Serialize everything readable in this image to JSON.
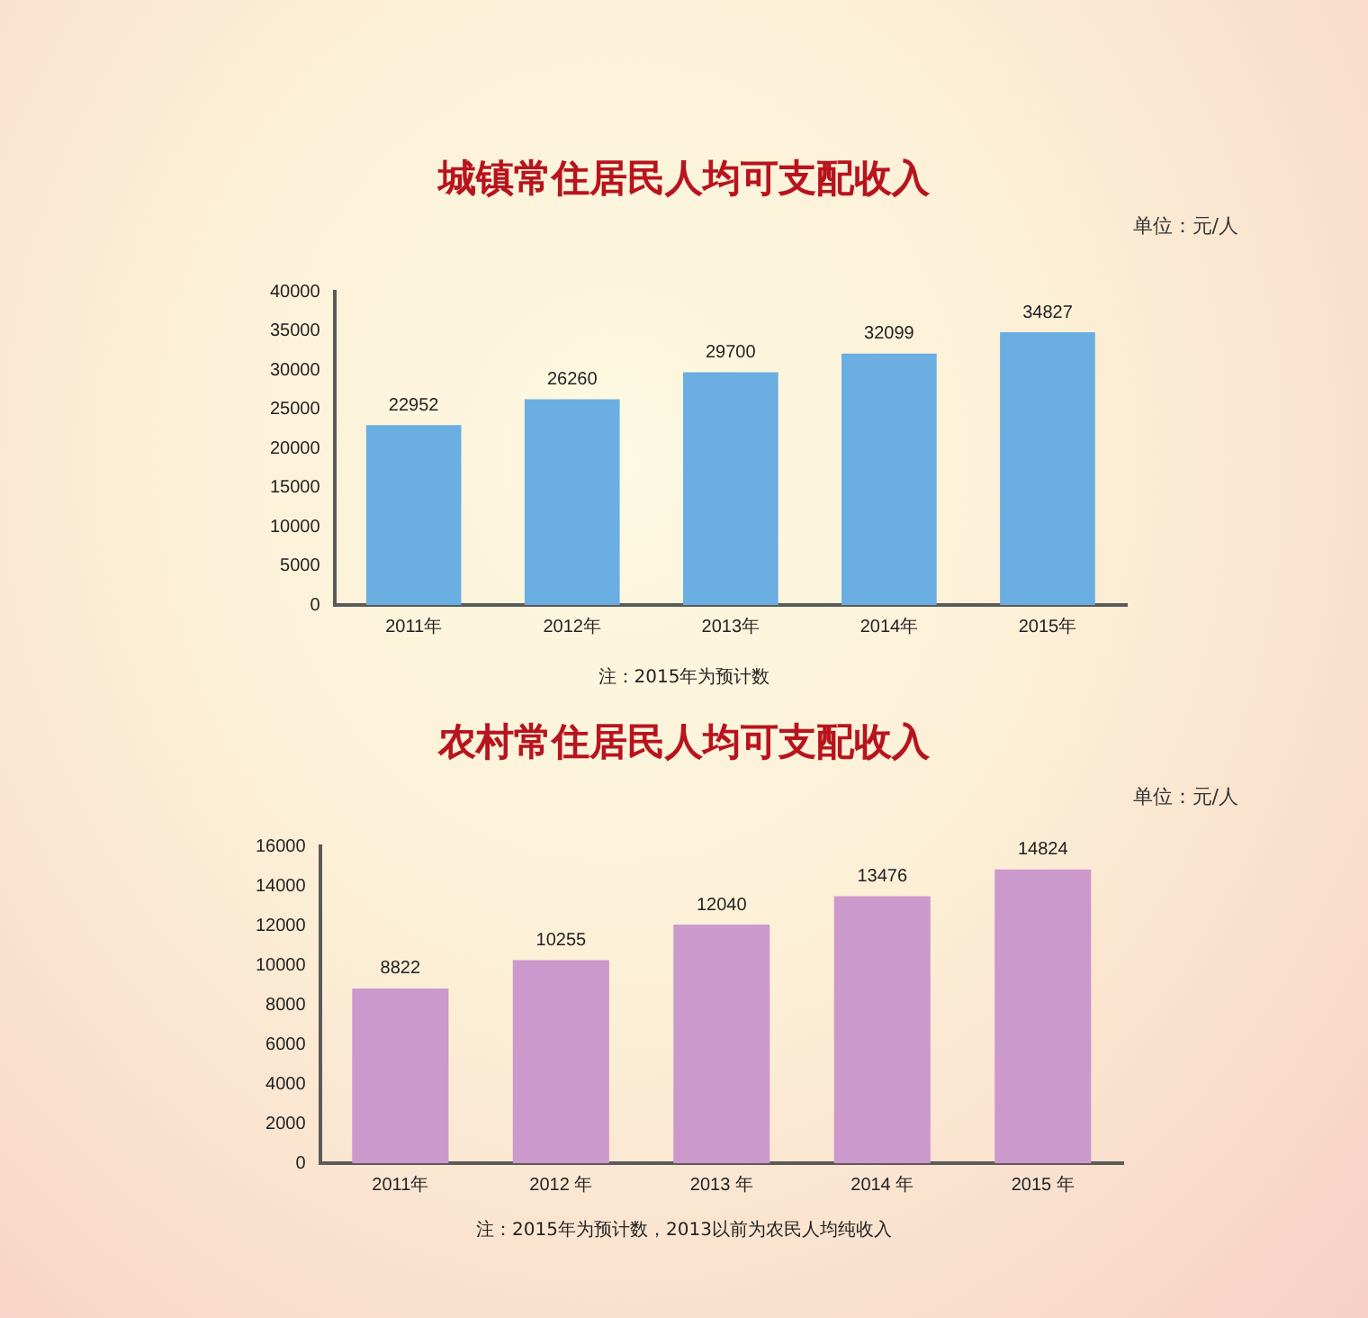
{
  "chart_data": [
    {
      "type": "bar",
      "title": "城镇常住居民人均可支配收入",
      "ylabel": "单位：元/人",
      "categories": [
        "2011年",
        "2012年",
        "2013年",
        "2014年",
        "2015年"
      ],
      "values": [
        22952,
        26260,
        29700,
        32099,
        34827
      ],
      "color": "#6aaee2",
      "ylim": [
        0,
        40000
      ],
      "yticks": [
        0,
        5000,
        10000,
        15000,
        20000,
        25000,
        30000,
        35000,
        40000
      ],
      "grid": false,
      "data_labels": true,
      "annotations": [
        "注：2015年为预计数"
      ]
    },
    {
      "type": "bar",
      "title": "农村常住居民人均可支配收入",
      "ylabel": "单位：元/人",
      "categories": [
        "2011年",
        "2012 年",
        "2013 年",
        "2014 年",
        "2015 年"
      ],
      "values": [
        8822,
        10255,
        12040,
        13476,
        14824
      ],
      "color": "#cc99cc",
      "ylim": [
        0,
        16000
      ],
      "yticks": [
        0,
        2000,
        4000,
        6000,
        8000,
        10000,
        12000,
        14000,
        16000
      ],
      "grid": false,
      "data_labels": true,
      "annotations": [
        "注：2015年为预计数，2013以前为农民人均纯收入"
      ]
    }
  ]
}
